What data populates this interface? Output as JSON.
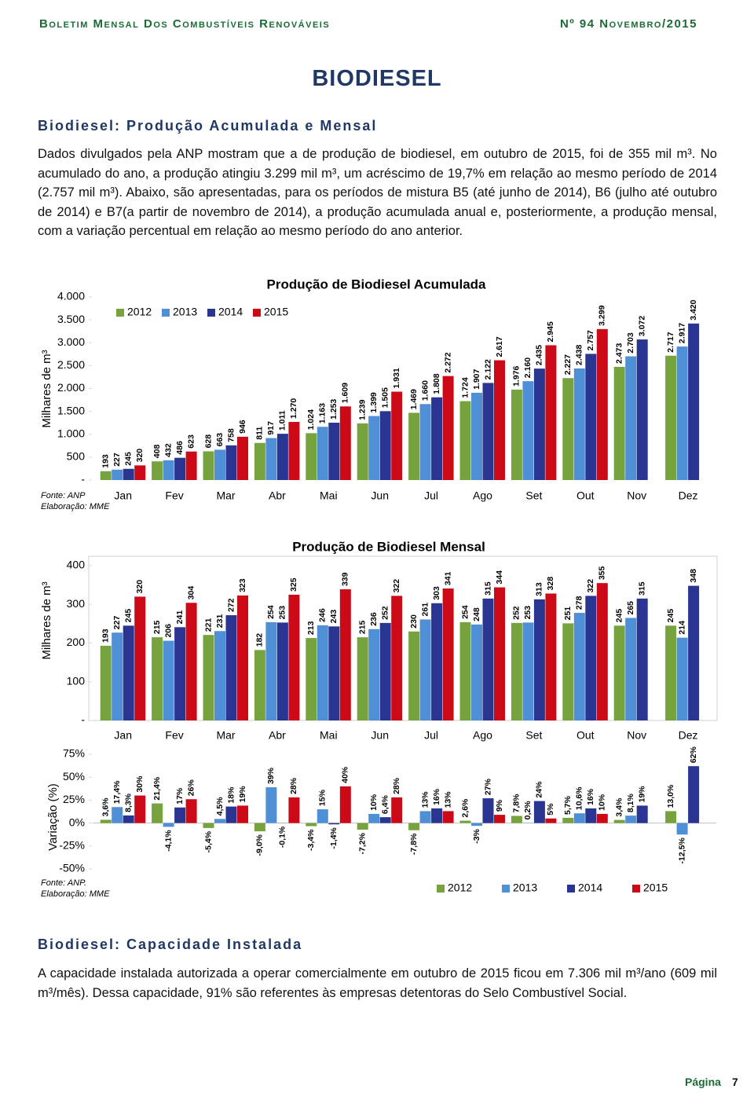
{
  "header": {
    "left": "Boletim Mensal Dos Combustíveis Renováveis",
    "right": "Nº 94 Novembro/2015"
  },
  "title": "BIODIESEL",
  "sections": [
    {
      "heading": "Biodiesel: Produção Acumulada e Mensal",
      "text": "Dados divulgados pela ANP mostram que a de produção de biodiesel, em outubro de 2015, foi de 355 mil m³. No acumulado do ano, a produção atingiu 3.299 mil m³, um acréscimo de 19,7% em relação ao mesmo período de 2014 (2.757 mil m³). Abaixo, são apresentadas, para os períodos de mistura B5 (até junho de 2014), B6 (julho até outubro de 2014) e B7(a partir de novembro de 2014), a produção acumulada anual e, posteriormente, a produção mensal, com a variação percentual em relação ao mesmo período do ano anterior."
    },
    {
      "heading": "Biodiesel: Capacidade Instalada",
      "text": "A capacidade instalada autorizada a operar comercialmente em outubro de 2015 ficou em 7.306 mil m³/ano (609 mil m³/mês). Dessa capacidade, 91% são referentes às empresas detentoras do Selo Combustível Social."
    }
  ],
  "chart_data": [
    {
      "type": "bar",
      "title": "Produção de Biodiesel Acumulada",
      "y_label": "Milhares de m³",
      "categories": [
        "Jan",
        "Fev",
        "Mar",
        "Abr",
        "Mai",
        "Jun",
        "Jul",
        "Ago",
        "Set",
        "Out",
        "Nov",
        "Dez"
      ],
      "ylim": [
        0,
        4000
      ],
      "yticks": [
        {
          "value": 0,
          "label": "-"
        },
        500,
        {
          "value": 1000,
          "label": "1.000"
        },
        {
          "value": 1500,
          "label": "1.500"
        },
        {
          "value": 2000,
          "label": "2.000"
        },
        {
          "value": 2500,
          "label": "2.500"
        },
        {
          "value": 3000,
          "label": "3.000"
        },
        {
          "value": 3500,
          "label": "3.500"
        },
        {
          "value": 4000,
          "label": "4.000"
        }
      ],
      "legend": "top-left",
      "series": [
        {
          "name": "2012",
          "color": "#77a33e",
          "values": [
            193,
            408,
            628,
            811,
            1024,
            1239,
            1469,
            1724,
            1976,
            2227,
            2473,
            2717
          ],
          "value_labels": [
            "193",
            "408",
            "628",
            "811",
            "1.024",
            "1.239",
            "1.469",
            "1.724",
            "1.976",
            "2.227",
            "2.473",
            "2.717"
          ]
        },
        {
          "name": "2013",
          "color": "#4f8fd6",
          "values": [
            227,
            432,
            663,
            917,
            1163,
            1399,
            1660,
            1907,
            2160,
            2438,
            2703,
            2917
          ],
          "value_labels": [
            "227",
            "432",
            "663",
            "917",
            "1.163",
            "1.399",
            "1.660",
            "1.907",
            "2.160",
            "2.438",
            "2.703",
            "2.917"
          ]
        },
        {
          "name": "2014",
          "color": "#2a3591",
          "values": [
            245,
            486,
            758,
            1011,
            1253,
            1505,
            1808,
            2122,
            2435,
            2757,
            3072,
            3420
          ],
          "value_labels": [
            "245",
            "486",
            "758",
            "1.011",
            "1.253",
            "1.505",
            "1.808",
            "2.122",
            "2.435",
            "2.757",
            "3.072",
            "3.420"
          ]
        },
        {
          "name": "2015",
          "color": "#cc0a17",
          "values": [
            320,
            623,
            946,
            1270,
            1609,
            1931,
            2272,
            2617,
            2945,
            3299,
            null,
            null
          ],
          "value_labels": [
            "320",
            "623",
            "946",
            "1.270",
            "1.609",
            "1.931",
            "2.272",
            "2.617",
            "2.945",
            "3.299",
            null,
            null
          ]
        }
      ],
      "notes": [
        "Fonte: ANP",
        "Elaboração: MME"
      ]
    },
    {
      "type": "bar",
      "title": "Produção de Biodiesel Mensal",
      "y_label": "Milhares de m³",
      "categories": [
        "Jan",
        "Fev",
        "Mar",
        "Abr",
        "Mai",
        "Jun",
        "Jul",
        "Ago",
        "Set",
        "Out",
        "Nov",
        "Dez"
      ],
      "ylim": [
        0,
        400
      ],
      "yticks": [
        {
          "value": 0,
          "label": "-"
        },
        100,
        200,
        300,
        400
      ],
      "series": [
        {
          "color": "#77a33e",
          "values": [
            193,
            215,
            221,
            182,
            213,
            215,
            230,
            254,
            252,
            251,
            245,
            245
          ]
        },
        {
          "color": "#4f8fd6",
          "values": [
            227,
            206,
            231,
            254,
            246,
            236,
            261,
            248,
            253,
            278,
            265,
            214
          ]
        },
        {
          "color": "#2a3591",
          "values": [
            245,
            241,
            272,
            253,
            243,
            252,
            303,
            315,
            313,
            322,
            315,
            348
          ]
        },
        {
          "color": "#cc0a17",
          "values": [
            320,
            304,
            323,
            325,
            339,
            322,
            341,
            344,
            328,
            355,
            null,
            null
          ]
        }
      ]
    },
    {
      "type": "bar",
      "y_label": "Variação (%)",
      "ylim": [
        -50,
        75
      ],
      "yticks": [
        {
          "value": -50,
          "label": "-50%"
        },
        {
          "value": -25,
          "label": "-25%"
        },
        {
          "value": 0,
          "label": "0%"
        },
        {
          "value": 25,
          "label": "25%"
        },
        {
          "value": 50,
          "label": "50%"
        },
        {
          "value": 75,
          "label": "75%"
        }
      ],
      "legend": "bottom-right",
      "series": [
        {
          "name": "2012",
          "color": "#77a33e",
          "values": [
            3.6,
            21.4,
            -5.4,
            -9.0,
            -3.4,
            -7.2,
            -7.8,
            2.6,
            7.8,
            5.7,
            3.4,
            13.0
          ],
          "value_labels": [
            "3,6%",
            "21,4%",
            "-5,4%",
            "-9,0%",
            "-3,4%",
            "-7,2%",
            "-7,8%",
            "2,6%",
            "7,8%",
            "5,7%",
            "3,4%",
            "13,0%"
          ]
        },
        {
          "name": "2013",
          "color": "#4f8fd6",
          "values": [
            17.4,
            -4.1,
            4.5,
            39,
            15,
            10,
            13,
            -3,
            0.2,
            10.6,
            8.1,
            -12.5
          ],
          "value_labels": [
            "17,4%",
            "-4,1%",
            "4,5%",
            "39%",
            "15%",
            "10%",
            "13%",
            "-3%",
            "0,2%",
            "10,6%",
            "8,1%",
            "-12,5%"
          ]
        },
        {
          "name": "2014",
          "color": "#2a3591",
          "values": [
            8.3,
            17,
            18,
            -0.1,
            -1.4,
            6.4,
            16,
            27,
            24,
            16,
            19,
            62
          ],
          "value_labels": [
            "8,3%",
            "17%",
            "18%",
            "-0,1%",
            "-1,4%",
            "6,4%",
            "16%",
            "27%",
            "24%",
            "16%",
            "19%",
            "62%"
          ]
        },
        {
          "name": "2015",
          "color": "#cc0a17",
          "values": [
            30,
            26,
            19,
            28,
            40,
            28,
            13,
            9,
            5,
            10,
            null,
            null
          ],
          "value_labels": [
            "30%",
            "26%",
            "19%",
            "28%",
            "40%",
            "28%",
            "13%",
            "9%",
            "5%",
            "10%",
            null,
            null
          ]
        }
      ],
      "notes": [
        "Fonte: ANP.",
        "Elaboração: MME"
      ]
    }
  ],
  "footer": {
    "label": "Página",
    "number": 7
  }
}
